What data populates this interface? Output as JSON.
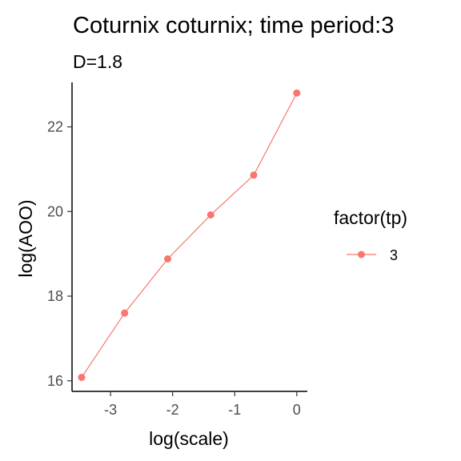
{
  "chart_data": {
    "type": "line",
    "title": "Coturnix coturnix; time period:3",
    "subtitle": "D=1.8",
    "xlabel": "log(scale)",
    "ylabel": "log(AOO)",
    "xlim": [
      -3.62,
      0.17
    ],
    "ylim": [
      15.75,
      23.05
    ],
    "x_ticks": [
      -3,
      -2,
      -1,
      0
    ],
    "x_tick_labels": [
      "-3",
      "-2",
      "-1",
      "0"
    ],
    "y_ticks": [
      16,
      18,
      20,
      22
    ],
    "y_tick_labels": [
      "16",
      "18",
      "20",
      "22"
    ],
    "grid": false,
    "legend": {
      "title": "factor(tp)",
      "placement": "right",
      "entries": [
        "3"
      ]
    },
    "series": [
      {
        "name": "3",
        "color": "#F8766D",
        "x": [
          -3.466,
          -2.773,
          -2.079,
          -1.386,
          -0.693,
          0
        ],
        "y": [
          16.08,
          17.6,
          18.88,
          19.92,
          20.86,
          22.8
        ]
      }
    ]
  }
}
